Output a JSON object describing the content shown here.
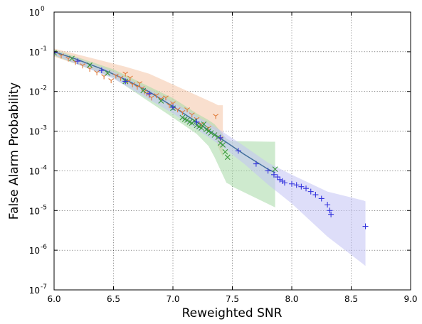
{
  "chart_data": {
    "type": "scatter",
    "title": "",
    "xlabel": "Reweighted SNR",
    "ylabel": "False Alarm Probability",
    "xlim": [
      6.0,
      9.0
    ],
    "ylim": [
      1e-07,
      1
    ],
    "yscale": "log",
    "grid": true,
    "legend": "none",
    "x_ticks": [
      {
        "value": 6.0,
        "label": "6.0"
      },
      {
        "value": 6.5,
        "label": "6.5"
      },
      {
        "value": 7.0,
        "label": "7.0"
      },
      {
        "value": 7.5,
        "label": "7.5"
      },
      {
        "value": 8.0,
        "label": "8.0"
      },
      {
        "value": 8.5,
        "label": "8.5"
      },
      {
        "value": 9.0,
        "label": "9.0"
      }
    ],
    "y_ticks": [
      {
        "value": 1,
        "base": "10",
        "exp": "0"
      },
      {
        "value": 0.1,
        "base": "10",
        "exp": "-1"
      },
      {
        "value": 0.01,
        "base": "10",
        "exp": "-2"
      },
      {
        "value": 0.001,
        "base": "10",
        "exp": "-3"
      },
      {
        "value": 0.0001,
        "base": "10",
        "exp": "-4"
      },
      {
        "value": 1e-05,
        "base": "10",
        "exp": "-5"
      },
      {
        "value": 1e-06,
        "base": "10",
        "exp": "-6"
      },
      {
        "value": 1e-07,
        "base": "10",
        "exp": "-7"
      }
    ],
    "series": [
      {
        "marker": "tri_down",
        "color": "#e07b39",
        "band_color": "#f4c4a6",
        "x": [
          6.0,
          6.06,
          6.12,
          6.18,
          6.24,
          6.3,
          6.36,
          6.42,
          6.48,
          6.52,
          6.56,
          6.6,
          6.62,
          6.64,
          6.66,
          6.7,
          6.72,
          6.74,
          6.76,
          6.78,
          6.8,
          6.82,
          6.86,
          6.9,
          6.94,
          6.97,
          7.0,
          7.04,
          7.08,
          7.12,
          7.16,
          7.2,
          7.24,
          7.3,
          7.36,
          7.4
        ],
        "y": [
          0.095,
          0.08,
          0.067,
          0.055,
          0.045,
          0.037,
          0.03,
          0.024,
          0.019,
          0.025,
          0.022,
          0.028,
          0.018,
          0.022,
          0.015,
          0.013,
          0.016,
          0.012,
          0.01,
          0.009,
          0.008,
          0.007,
          0.008,
          0.0065,
          0.007,
          0.0045,
          0.005,
          0.0035,
          0.003,
          0.0035,
          0.0026,
          0.002,
          0.0015,
          0.0012,
          0.0024,
          0.00065
        ],
        "band_x": [
          6.0,
          6.2,
          6.4,
          6.6,
          6.8,
          7.0,
          7.2,
          7.35,
          7.38,
          7.42
        ],
        "band_upper": [
          0.12,
          0.085,
          0.06,
          0.042,
          0.028,
          0.015,
          0.008,
          0.005,
          0.0045,
          0.0045
        ],
        "band_lower": [
          0.075,
          0.048,
          0.03,
          0.018,
          0.01,
          0.005,
          0.0022,
          0.0011,
          0.0004,
          0.00022
        ]
      },
      {
        "marker": "x",
        "color": "#3a9a3a",
        "band_color": "#a6d8a6",
        "x": [
          6.0,
          6.15,
          6.3,
          6.45,
          6.6,
          6.75,
          6.9,
          7.0,
          7.08,
          7.1,
          7.12,
          7.14,
          7.16,
          7.18,
          7.2,
          7.22,
          7.24,
          7.26,
          7.28,
          7.3,
          7.32,
          7.35,
          7.38,
          7.4,
          7.42,
          7.44,
          7.46,
          7.86
        ],
        "y": [
          0.095,
          0.068,
          0.046,
          0.029,
          0.018,
          0.0105,
          0.0058,
          0.0038,
          0.0022,
          0.002,
          0.0019,
          0.0017,
          0.0016,
          0.0018,
          0.0014,
          0.0013,
          0.0012,
          0.0015,
          0.0011,
          0.001,
          0.0009,
          0.0008,
          0.0007,
          0.0005,
          0.00045,
          0.0003,
          0.00022,
          0.00011
        ],
        "band_x": [
          6.0,
          6.5,
          7.0,
          7.2,
          7.3,
          7.35,
          7.45,
          7.48,
          7.5,
          7.86
        ],
        "band_upper": [
          0.115,
          0.036,
          0.0068,
          0.0028,
          0.0019,
          0.0015,
          0.00065,
          0.00058,
          0.00056,
          0.00054
        ],
        "band_lower": [
          0.08,
          0.022,
          0.0022,
          0.00085,
          0.00042,
          0.00022,
          5e-05,
          4.5e-05,
          4e-05,
          1.2e-05
        ]
      },
      {
        "marker": "plus",
        "color": "#3333dd",
        "band_color": "#c2c2f4",
        "x": [
          6.0,
          6.2,
          6.4,
          6.6,
          6.8,
          7.0,
          7.2,
          7.4,
          7.55,
          7.7,
          7.8,
          7.85,
          7.88,
          7.9,
          7.92,
          7.94,
          8.0,
          8.04,
          8.08,
          8.12,
          8.16,
          8.2,
          8.25,
          8.3,
          8.32,
          8.33,
          8.62
        ],
        "y": [
          0.095,
          0.058,
          0.034,
          0.018,
          0.0088,
          0.004,
          0.0017,
          0.00068,
          0.00032,
          0.00015,
          0.0001,
          8e-05,
          7e-05,
          6e-05,
          5.5e-05,
          5e-05,
          4.7e-05,
          4.4e-05,
          4e-05,
          3.6e-05,
          3e-05,
          2.5e-05,
          2e-05,
          1.4e-05,
          1e-05,
          8e-06,
          4e-06
        ],
        "band_x": [
          6.0,
          6.5,
          7.0,
          7.4,
          7.6,
          7.8,
          8.0,
          8.3,
          8.6,
          8.62
        ],
        "band_upper": [
          0.11,
          0.032,
          0.0055,
          0.00105,
          0.00042,
          0.00016,
          8e-05,
          3e-05,
          1.8e-05,
          1.7e-05
        ],
        "band_lower": [
          0.083,
          0.021,
          0.0028,
          0.00044,
          0.00015,
          4.5e-05,
          1.5e-05,
          2.2e-06,
          4.5e-07,
          4e-07
        ]
      }
    ],
    "fit_line": {
      "color": "#2a3fc8",
      "x": [
        6.0,
        6.2,
        6.4,
        6.6,
        6.8,
        7.0,
        7.2,
        7.4,
        7.6,
        7.8,
        7.86
      ],
      "y": [
        0.1,
        0.063,
        0.037,
        0.02,
        0.0098,
        0.0042,
        0.0017,
        0.00066,
        0.00026,
        0.00011,
        9e-05
      ]
    }
  }
}
